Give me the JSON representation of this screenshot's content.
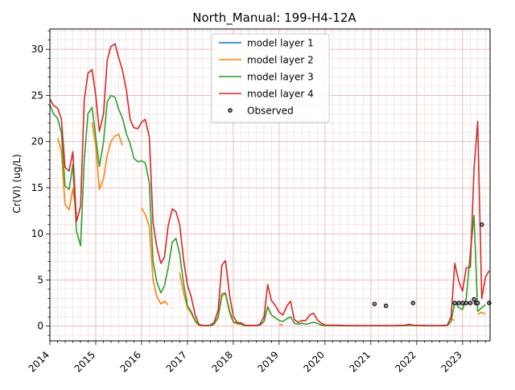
{
  "chart_data": {
    "type": "line",
    "title": "North_Manual: 199-H4-12A",
    "xlabel": "",
    "ylabel": "Cr(VI) (ug/L)",
    "xlim": [
      2014.0,
      2023.6
    ],
    "ylim": [
      -1.6,
      32.2
    ],
    "x_ticks": [
      2014,
      2015,
      2016,
      2017,
      2018,
      2019,
      2020,
      2021,
      2022,
      2023
    ],
    "x_tick_labels": [
      "2014",
      "2015",
      "2016",
      "2017",
      "2018",
      "2019",
      "2020",
      "2021",
      "2022",
      "2023"
    ],
    "y_ticks": [
      0,
      5,
      10,
      15,
      20,
      25,
      30
    ],
    "y_tick_labels": [
      "0",
      "5",
      "10",
      "15",
      "20",
      "25",
      "30"
    ],
    "grid": true,
    "legend_position": "top-center",
    "series": [
      {
        "name": "model layer 1",
        "color": "#1f77b4",
        "points": []
      },
      {
        "name": "model layer 2",
        "color": "#ff7f0e",
        "segments": [
          [
            [
              2014.17,
              20.4
            ],
            [
              2014.25,
              19.0
            ],
            [
              2014.33,
              13.2
            ],
            [
              2014.42,
              12.6
            ],
            [
              2014.5,
              14.9
            ],
            [
              2014.58,
              12.1
            ]
          ],
          [
            [
              2014.92,
              22.1
            ],
            [
              2015.0,
              19.5
            ],
            [
              2015.08,
              14.8
            ],
            [
              2015.17,
              16.0
            ],
            [
              2015.25,
              18.5
            ],
            [
              2015.33,
              20.0
            ],
            [
              2015.42,
              20.6
            ],
            [
              2015.5,
              20.8
            ],
            [
              2015.58,
              19.6
            ]
          ],
          [
            [
              2016.0,
              12.8
            ],
            [
              2016.08,
              12.1
            ],
            [
              2016.17,
              10.8
            ],
            [
              2016.25,
              5.0
            ],
            [
              2016.33,
              3.2
            ],
            [
              2016.42,
              2.4
            ],
            [
              2016.5,
              2.7
            ],
            [
              2016.58,
              2.3
            ]
          ],
          [
            [
              2016.83,
              5.8
            ],
            [
              2016.92,
              3.5
            ],
            [
              2017.0,
              2.0
            ],
            [
              2017.08,
              1.4
            ],
            [
              2017.17,
              0.5
            ],
            [
              2017.25,
              0.1
            ],
            [
              2017.33,
              0.05
            ],
            [
              2017.42,
              0.05
            ],
            [
              2017.5,
              0.05
            ],
            [
              2017.58,
              0.2
            ],
            [
              2017.67,
              0.9
            ],
            [
              2017.75,
              3.2
            ],
            [
              2017.83,
              3.5
            ],
            [
              2017.92,
              1.4
            ],
            [
              2018.0,
              0.4
            ],
            [
              2018.08,
              0.25
            ],
            [
              2018.17,
              0.2
            ],
            [
              2018.25,
              0.05
            ],
            [
              2018.33,
              0.05
            ],
            [
              2018.42,
              0.05
            ],
            [
              2018.5,
              0.05
            ],
            [
              2018.58,
              0.1
            ],
            [
              2018.67,
              0.5
            ],
            [
              2018.75,
              2.1
            ],
            [
              2018.83,
              1.2
            ],
            [
              2018.92,
              0.9
            ]
          ],
          [
            [
              2019.0,
              0.2
            ],
            [
              2019.08,
              0.1
            ]
          ],
          [
            [
              2022.75,
              0.8
            ],
            [
              2022.83,
              0.6
            ]
          ],
          [
            [
              2023.33,
              1.3
            ],
            [
              2023.42,
              1.5
            ],
            [
              2023.5,
              1.3
            ]
          ]
        ]
      },
      {
        "name": "model layer 3",
        "color": "#2ca02c",
        "segments": [
          [
            [
              2014.0,
              24.0
            ],
            [
              2014.08,
              23.0
            ],
            [
              2014.17,
              22.5
            ],
            [
              2014.25,
              21.0
            ],
            [
              2014.33,
              15.2
            ],
            [
              2014.42,
              14.8
            ],
            [
              2014.5,
              17.5
            ],
            [
              2014.58,
              10.3
            ],
            [
              2014.67,
              8.7
            ],
            [
              2014.75,
              18.0
            ],
            [
              2014.83,
              23.0
            ],
            [
              2014.92,
              23.7
            ],
            [
              2015.0,
              20.5
            ],
            [
              2015.08,
              17.3
            ],
            [
              2015.17,
              20.0
            ],
            [
              2015.25,
              24.3
            ],
            [
              2015.33,
              25.0
            ],
            [
              2015.42,
              24.8
            ],
            [
              2015.5,
              23.5
            ],
            [
              2015.58,
              22.6
            ],
            [
              2015.67,
              20.8
            ],
            [
              2015.75,
              19.8
            ],
            [
              2015.83,
              18.2
            ],
            [
              2015.92,
              17.8
            ],
            [
              2016.0,
              17.9
            ],
            [
              2016.08,
              17.7
            ],
            [
              2016.17,
              15.5
            ],
            [
              2016.25,
              7.0
            ],
            [
              2016.33,
              4.8
            ],
            [
              2016.42,
              3.6
            ],
            [
              2016.5,
              4.4
            ],
            [
              2016.58,
              6.3
            ],
            [
              2016.67,
              9.1
            ],
            [
              2016.75,
              9.5
            ],
            [
              2016.83,
              7.8
            ],
            [
              2016.92,
              4.5
            ],
            [
              2017.0,
              2.2
            ],
            [
              2017.08,
              1.6
            ],
            [
              2017.17,
              0.6
            ],
            [
              2017.25,
              0.1
            ],
            [
              2017.33,
              0.05
            ],
            [
              2017.42,
              0.05
            ],
            [
              2017.5,
              0.05
            ],
            [
              2017.58,
              0.2
            ],
            [
              2017.67,
              1.0
            ],
            [
              2017.75,
              3.5
            ],
            [
              2017.83,
              3.6
            ],
            [
              2017.92,
              1.6
            ],
            [
              2018.0,
              0.5
            ],
            [
              2018.08,
              0.3
            ],
            [
              2018.17,
              0.2
            ],
            [
              2018.25,
              0.05
            ],
            [
              2018.33,
              0.05
            ],
            [
              2018.42,
              0.05
            ],
            [
              2018.5,
              0.05
            ],
            [
              2018.58,
              0.1
            ],
            [
              2018.67,
              0.5
            ],
            [
              2018.75,
              2.1
            ],
            [
              2018.83,
              1.2
            ],
            [
              2018.92,
              0.9
            ],
            [
              2019.0,
              0.6
            ],
            [
              2019.08,
              0.5
            ],
            [
              2019.17,
              0.8
            ],
            [
              2019.25,
              1.0
            ],
            [
              2019.33,
              0.3
            ],
            [
              2019.42,
              0.2
            ],
            [
              2019.5,
              0.3
            ],
            [
              2019.58,
              0.2
            ],
            [
              2019.67,
              0.3
            ],
            [
              2019.75,
              0.4
            ],
            [
              2019.83,
              0.3
            ],
            [
              2019.92,
              0.1
            ],
            [
              2020.0,
              0.05
            ],
            [
              2020.25,
              0.05
            ],
            [
              2020.5,
              0.03
            ],
            [
              2020.75,
              0.03
            ],
            [
              2021.0,
              0.03
            ],
            [
              2021.25,
              0.03
            ],
            [
              2021.5,
              0.03
            ],
            [
              2021.75,
              0.05
            ],
            [
              2021.83,
              0.1
            ],
            [
              2021.92,
              0.05
            ],
            [
              2022.25,
              0.03
            ],
            [
              2022.5,
              0.03
            ],
            [
              2022.67,
              0.05
            ],
            [
              2022.75,
              0.5
            ],
            [
              2022.83,
              2.6
            ],
            [
              2022.92,
              2.0
            ],
            [
              2023.0,
              1.8
            ],
            [
              2023.08,
              3.0
            ],
            [
              2023.17,
              8.0
            ],
            [
              2023.25,
              12.0
            ],
            [
              2023.33,
              1.6
            ],
            [
              2023.42,
              2.0
            ],
            [
              2023.5,
              2.3
            ]
          ]
        ]
      },
      {
        "name": "model layer 4",
        "color": "#d62728",
        "segments": [
          [
            [
              2014.0,
              24.6
            ],
            [
              2014.08,
              23.9
            ],
            [
              2014.17,
              23.6
            ],
            [
              2014.25,
              22.5
            ],
            [
              2014.33,
              17.2
            ],
            [
              2014.42,
              16.8
            ],
            [
              2014.5,
              18.9
            ],
            [
              2014.58,
              11.3
            ],
            [
              2014.67,
              13.0
            ],
            [
              2014.75,
              24.5
            ],
            [
              2014.83,
              27.4
            ],
            [
              2014.92,
              27.8
            ],
            [
              2015.0,
              25.0
            ],
            [
              2015.08,
              21.1
            ],
            [
              2015.17,
              23.0
            ],
            [
              2015.25,
              28.8
            ],
            [
              2015.33,
              30.3
            ],
            [
              2015.42,
              30.6
            ],
            [
              2015.5,
              29.1
            ],
            [
              2015.58,
              27.8
            ],
            [
              2015.67,
              25.5
            ],
            [
              2015.75,
              22.4
            ],
            [
              2015.83,
              21.5
            ],
            [
              2015.92,
              21.4
            ],
            [
              2016.0,
              22.1
            ],
            [
              2016.08,
              22.4
            ],
            [
              2016.17,
              20.5
            ],
            [
              2016.25,
              11.2
            ],
            [
              2016.33,
              8.6
            ],
            [
              2016.42,
              6.8
            ],
            [
              2016.5,
              7.5
            ],
            [
              2016.58,
              10.9
            ],
            [
              2016.67,
              12.7
            ],
            [
              2016.75,
              12.4
            ],
            [
              2016.83,
              11.0
            ],
            [
              2016.92,
              7.0
            ],
            [
              2017.0,
              4.5
            ],
            [
              2017.08,
              3.2
            ],
            [
              2017.17,
              1.2
            ],
            [
              2017.25,
              0.2
            ],
            [
              2017.33,
              0.05
            ],
            [
              2017.42,
              0.05
            ],
            [
              2017.5,
              0.1
            ],
            [
              2017.58,
              0.4
            ],
            [
              2017.67,
              1.7
            ],
            [
              2017.75,
              6.6
            ],
            [
              2017.83,
              7.1
            ],
            [
              2017.92,
              3.3
            ],
            [
              2018.0,
              1.1
            ],
            [
              2018.08,
              0.4
            ],
            [
              2018.17,
              0.35
            ],
            [
              2018.25,
              0.1
            ],
            [
              2018.33,
              0.05
            ],
            [
              2018.42,
              0.05
            ],
            [
              2018.5,
              0.05
            ],
            [
              2018.58,
              0.2
            ],
            [
              2018.67,
              1.0
            ],
            [
              2018.75,
              4.5
            ],
            [
              2018.83,
              2.8
            ],
            [
              2018.92,
              2.2
            ],
            [
              2019.0,
              1.5
            ],
            [
              2019.08,
              1.2
            ],
            [
              2019.17,
              2.2
            ],
            [
              2019.25,
              2.7
            ],
            [
              2019.33,
              0.7
            ],
            [
              2019.42,
              0.4
            ],
            [
              2019.5,
              0.6
            ],
            [
              2019.58,
              0.6
            ],
            [
              2019.67,
              1.2
            ],
            [
              2019.75,
              1.4
            ],
            [
              2019.83,
              0.7
            ],
            [
              2019.92,
              0.3
            ],
            [
              2020.0,
              0.1
            ],
            [
              2020.25,
              0.1
            ],
            [
              2020.5,
              0.05
            ],
            [
              2020.75,
              0.05
            ],
            [
              2021.0,
              0.05
            ],
            [
              2021.25,
              0.05
            ],
            [
              2021.5,
              0.05
            ],
            [
              2021.75,
              0.1
            ],
            [
              2021.83,
              0.2
            ],
            [
              2021.92,
              0.1
            ],
            [
              2022.25,
              0.05
            ],
            [
              2022.5,
              0.05
            ],
            [
              2022.67,
              0.1
            ],
            [
              2022.75,
              1.0
            ],
            [
              2022.83,
              6.8
            ],
            [
              2022.92,
              4.8
            ],
            [
              2023.0,
              3.8
            ],
            [
              2023.08,
              6.3
            ],
            [
              2023.17,
              6.4
            ],
            [
              2023.25,
              17.0
            ],
            [
              2023.33,
              22.2
            ],
            [
              2023.42,
              3.0
            ],
            [
              2023.5,
              5.3
            ],
            [
              2023.58,
              6.0
            ]
          ]
        ]
      },
      {
        "name": "Observed",
        "marker": "circle",
        "points": [
          [
            2021.08,
            2.4
          ],
          [
            2021.33,
            2.2
          ],
          [
            2021.92,
            2.5
          ],
          [
            2022.83,
            2.5
          ],
          [
            2022.92,
            2.5
          ],
          [
            2023.0,
            2.5
          ],
          [
            2023.08,
            2.5
          ],
          [
            2023.17,
            2.5
          ],
          [
            2023.25,
            2.9
          ],
          [
            2023.29,
            2.5
          ],
          [
            2023.33,
            2.5
          ],
          [
            2023.42,
            11.0
          ],
          [
            2023.58,
            2.5
          ]
        ]
      }
    ]
  }
}
